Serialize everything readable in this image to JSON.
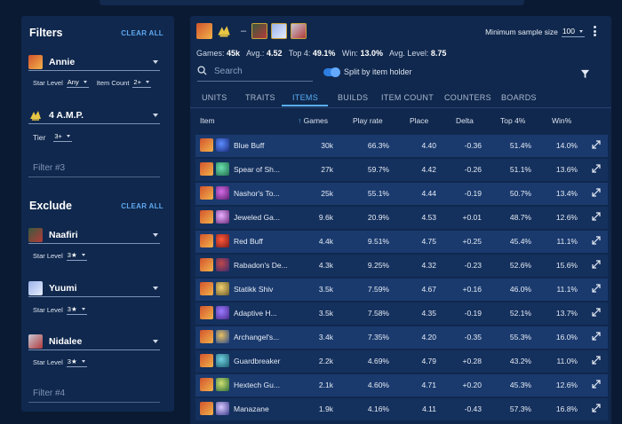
{
  "filters": {
    "title": "Filters",
    "clear_all": "CLEAR ALL",
    "unit1": {
      "name": "Annie",
      "star_label": "Star Level",
      "star_value": "Any",
      "item_count_label": "Item Count",
      "item_count_value": "2+"
    },
    "trait1": {
      "name": "4 A.M.P.",
      "tier_label": "Tier",
      "tier_value": "3+"
    },
    "placeholder3": "Filter #3"
  },
  "exclude": {
    "title": "Exclude",
    "clear_all": "CLEAR ALL",
    "units": [
      {
        "name": "Naafiri",
        "star_label": "Star Level",
        "star_value": "3★"
      },
      {
        "name": "Yuumi",
        "star_label": "Star Level",
        "star_value": "3★"
      },
      {
        "name": "Nidalee",
        "star_label": "Star Level",
        "star_value": "3★"
      }
    ],
    "placeholder4": "Filter #4"
  },
  "header": {
    "dash": "–",
    "min_sample_label": "Minimum sample size",
    "min_sample_value": "100"
  },
  "stats": {
    "games_label": "Games:",
    "games_value": "45k",
    "avg_label": "Avg.:",
    "avg_value": "4.52",
    "top4_label": "Top 4:",
    "top4_value": "49.1%",
    "win_label": "Win:",
    "win_value": "13.0%",
    "avglevel_label": "Avg. Level:",
    "avglevel_value": "8.75"
  },
  "search": {
    "placeholder": "Search"
  },
  "toggle": {
    "label": "Split by item holder",
    "on": true
  },
  "tabs": [
    "UNITS",
    "TRAITS",
    "ITEMS",
    "BUILDS",
    "ITEM COUNT",
    "COUNTERS",
    "BOARDS"
  ],
  "active_tab": "ITEMS",
  "table": {
    "columns": [
      "Item",
      "Games",
      "Play rate",
      "Place",
      "Delta",
      "Top 4%",
      "Win%"
    ],
    "sort_arrow": "↑",
    "rows": [
      {
        "item": "Blue Buff",
        "games": "30k",
        "play_rate": "66.3%",
        "place": "4.40",
        "delta": "-0.36",
        "top4": "51.4%",
        "win": "14.0%"
      },
      {
        "item": "Spear of Sh...",
        "games": "27k",
        "play_rate": "59.7%",
        "place": "4.42",
        "delta": "-0.26",
        "top4": "51.1%",
        "win": "13.6%"
      },
      {
        "item": "Nashor's To...",
        "games": "25k",
        "play_rate": "55.1%",
        "place": "4.44",
        "delta": "-0.19",
        "top4": "50.7%",
        "win": "13.4%"
      },
      {
        "item": "Jeweled Ga...",
        "games": "9.6k",
        "play_rate": "20.9%",
        "place": "4.53",
        "delta": "+0.01",
        "top4": "48.7%",
        "win": "12.6%"
      },
      {
        "item": "Red Buff",
        "games": "4.4k",
        "play_rate": "9.51%",
        "place": "4.75",
        "delta": "+0.25",
        "top4": "45.4%",
        "win": "11.1%"
      },
      {
        "item": "Rabadon's De...",
        "games": "4.3k",
        "play_rate": "9.25%",
        "place": "4.32",
        "delta": "-0.23",
        "top4": "52.6%",
        "win": "15.6%"
      },
      {
        "item": "Statikk Shiv",
        "games": "3.5k",
        "play_rate": "7.59%",
        "place": "4.67",
        "delta": "+0.16",
        "top4": "46.0%",
        "win": "11.1%"
      },
      {
        "item": "Adaptive H...",
        "games": "3.5k",
        "play_rate": "7.58%",
        "place": "4.35",
        "delta": "-0.19",
        "top4": "52.1%",
        "win": "13.7%"
      },
      {
        "item": "Archangel's...",
        "games": "3.4k",
        "play_rate": "7.35%",
        "place": "4.20",
        "delta": "-0.35",
        "top4": "55.3%",
        "win": "16.0%"
      },
      {
        "item": "Guardbreaker",
        "games": "2.2k",
        "play_rate": "4.69%",
        "place": "4.79",
        "delta": "+0.28",
        "top4": "43.2%",
        "win": "11.0%"
      },
      {
        "item": "Hextech Gu...",
        "games": "2.1k",
        "play_rate": "4.60%",
        "place": "4.71",
        "delta": "+0.20",
        "top4": "45.3%",
        "win": "12.6%"
      },
      {
        "item": "Manazane",
        "games": "1.9k",
        "play_rate": "4.16%",
        "place": "4.11",
        "delta": "-0.43",
        "top4": "57.3%",
        "win": "16.8%"
      }
    ]
  },
  "colors": {
    "accent": "#58aef5",
    "panel": "#10284d",
    "row_even": "#1a3a6e",
    "row_odd": "#14305d"
  }
}
